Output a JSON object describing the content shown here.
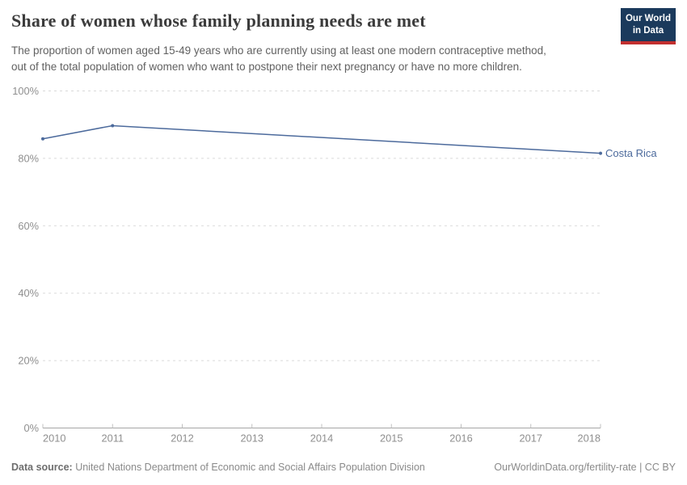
{
  "header": {
    "title": "Share of women whose family planning needs are met",
    "subtitle_line1": "The proportion of women aged 15-49 years who are currently using at least one modern contraceptive method,",
    "subtitle_line2": "out of the total population of women who want to postpone their next pregnancy or have no more children."
  },
  "logo": {
    "line1": "Our World",
    "line2": "in Data",
    "bg_color": "#1b3a5c",
    "stripe_color": "#c22f2f",
    "text_color": "#ffffff"
  },
  "chart_data": {
    "type": "line",
    "title": "Share of women whose family planning needs are met",
    "xlabel": "",
    "ylabel": "",
    "xlim": [
      2010,
      2018
    ],
    "ylim": [
      0,
      100
    ],
    "x_ticks": [
      2010,
      2011,
      2012,
      2013,
      2014,
      2015,
      2016,
      2017,
      2018
    ],
    "y_ticks": [
      0,
      20,
      40,
      60,
      80,
      100
    ],
    "y_suffix": "%",
    "grid": "horizontal-dashed",
    "legend_position": "label-at-line-end",
    "series": [
      {
        "name": "Costa Rica",
        "color": "#4C6A9C",
        "points": [
          [
            2010,
            85.8
          ],
          [
            2011,
            89.7
          ],
          [
            2018,
            81.5
          ]
        ]
      }
    ]
  },
  "footer": {
    "source_label": "Data source:",
    "source_text": " United Nations Department of Economic and Social Affairs Population Division",
    "credit": "OurWorldinData.org/fertility-rate | CC BY"
  },
  "colors": {
    "line": "#4C6A9C",
    "grid": "#dadada",
    "axis": "#a6a6a6",
    "tick_mark": "#c0c0c0",
    "tick_label": "#8f8f8f",
    "title": "#3b3b3b",
    "subtitle": "#616161",
    "footer": "#8a8a8a"
  }
}
